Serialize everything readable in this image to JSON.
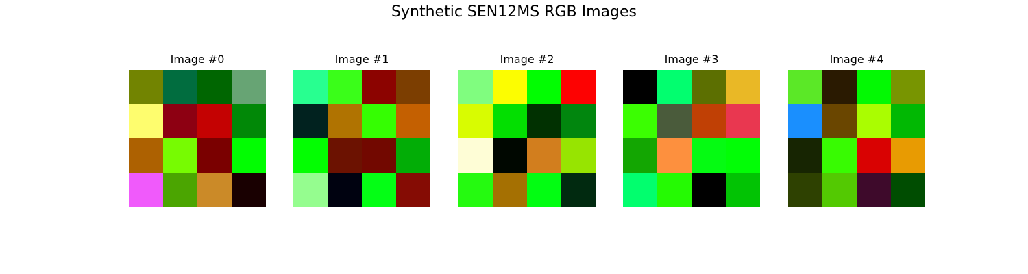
{
  "figure": {
    "title": "Synthetic SEN12MS RGB Images"
  },
  "chart_data": [
    {
      "type": "heatmap",
      "title": "Image #0",
      "rows": 4,
      "cols": 4,
      "pixels": [
        [
          "#728401",
          "#016d3f",
          "#006601",
          "#67a474"
        ],
        [
          "#fefd6e",
          "#8d0012",
          "#c40202",
          "#018807"
        ],
        [
          "#ad6101",
          "#77fb02",
          "#7a0000",
          "#02fd02"
        ],
        [
          "#f05afb",
          "#4ba501",
          "#cb8a28",
          "#190001"
        ]
      ]
    },
    {
      "type": "heatmap",
      "title": "Image #1",
      "rows": 4,
      "cols": 4,
      "pixels": [
        [
          "#28ff90",
          "#3afe19",
          "#8c0300",
          "#7c3e01"
        ],
        [
          "#01221f",
          "#b07301",
          "#35fe02",
          "#c46001"
        ],
        [
          "#03fe02",
          "#6c1201",
          "#720800",
          "#02ad06"
        ],
        [
          "#95fd8f",
          "#000210",
          "#04fe15",
          "#850c04"
        ]
      ]
    },
    {
      "type": "heatmap",
      "title": "Image #2",
      "rows": 4,
      "cols": 4,
      "pixels": [
        [
          "#80fd7f",
          "#fcfd01",
          "#02fd02",
          "#fd0202"
        ],
        [
          "#d8fc01",
          "#03df01",
          "#013101",
          "#01860e"
        ],
        [
          "#fefdd6",
          "#000700",
          "#d27e1e",
          "#97e401"
        ],
        [
          "#25fa10",
          "#a57002",
          "#02fd12",
          "#012a10"
        ]
      ]
    },
    {
      "type": "heatmap",
      "title": "Image #3",
      "rows": 4,
      "cols": 4,
      "pixels": [
        [
          "#000000",
          "#02fe6f",
          "#5c6f01",
          "#e9b826"
        ],
        [
          "#3bfe02",
          "#4a5b3b",
          "#c04005",
          "#e93750"
        ],
        [
          "#13a602",
          "#fd903e",
          "#05fb12",
          "#02fd06"
        ],
        [
          "#02fe6e",
          "#25fa03",
          "#000000",
          "#02c304"
        ]
      ]
    },
    {
      "type": "heatmap",
      "title": "Image #4",
      "rows": 4,
      "cols": 4,
      "pixels": [
        [
          "#5be827",
          "#2a1a01",
          "#03f903",
          "#789501"
        ],
        [
          "#1a8ffe",
          "#6a4600",
          "#aafd01",
          "#01b803"
        ],
        [
          "#172502",
          "#38fb02",
          "#d90202",
          "#e89b02"
        ],
        [
          "#2e4101",
          "#53c902",
          "#3e0a2b",
          "#004d01"
        ]
      ]
    }
  ]
}
